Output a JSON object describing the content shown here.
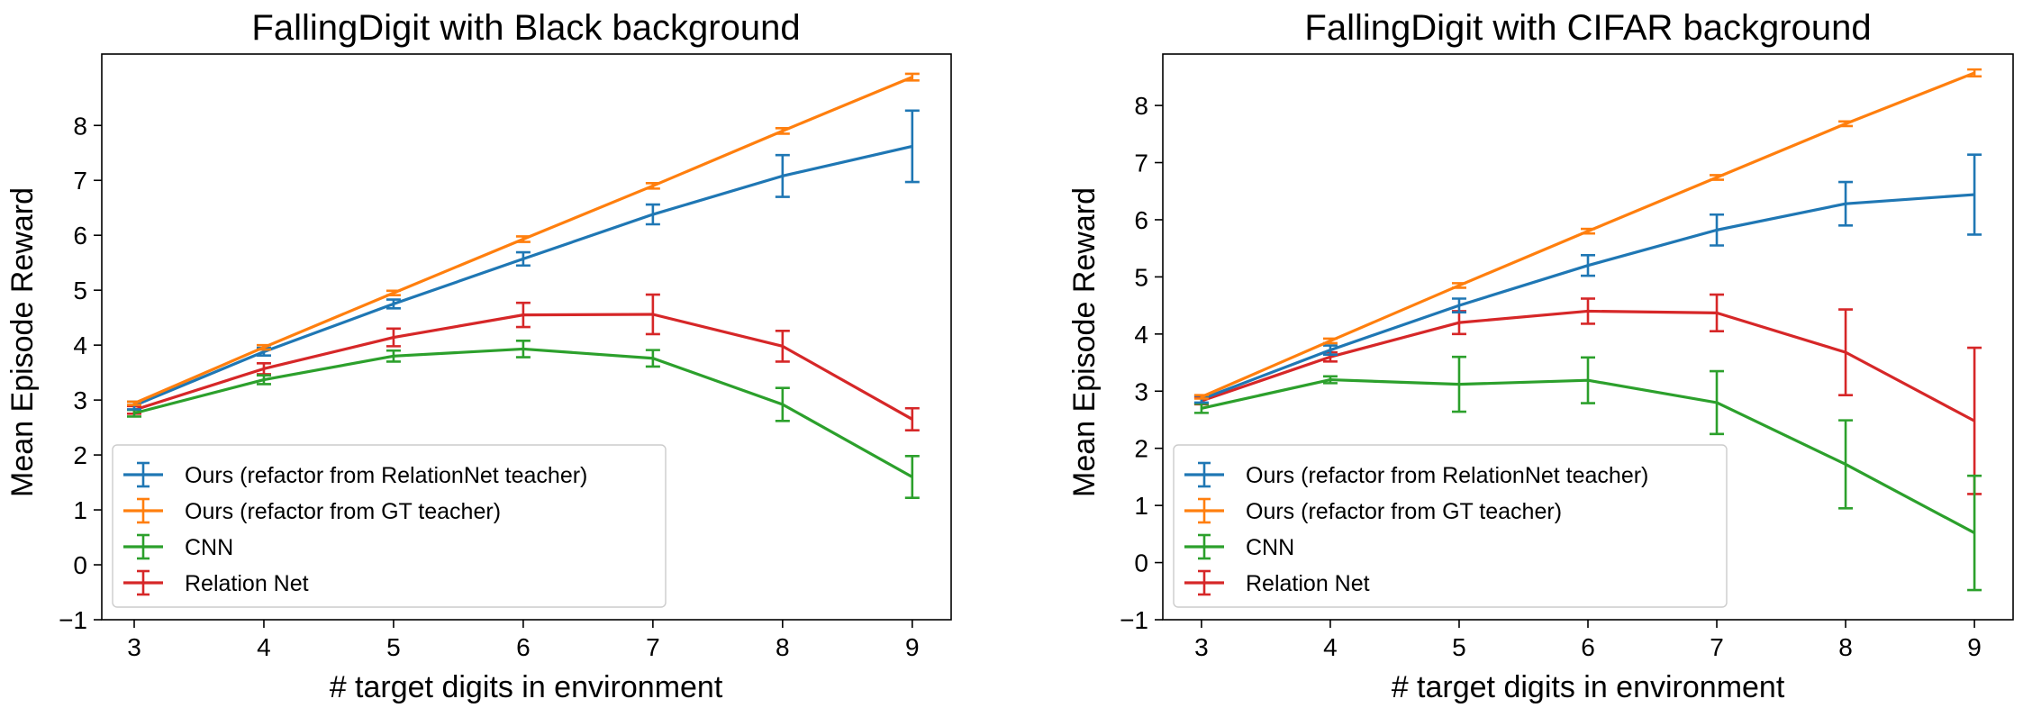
{
  "chart_data": [
    {
      "type": "line",
      "title": "FallingDigit with Black background",
      "xlabel": "# target digits in environment",
      "ylabel": "Mean Episode Reward",
      "xlim": [
        2.75,
        9.3
      ],
      "ylim": [
        -1,
        9.3
      ],
      "x": [
        3,
        4,
        5,
        6,
        7,
        8,
        9
      ],
      "xticks": [
        3,
        4,
        5,
        6,
        7,
        8,
        9
      ],
      "yticks": [
        -1,
        0,
        1,
        2,
        3,
        4,
        5,
        6,
        7,
        8
      ],
      "legend_position": "lower-left",
      "series": [
        {
          "name": "Ours (refactor from RelationNet teacher)",
          "color": "#1f77b4",
          "values": [
            2.9,
            3.88,
            4.75,
            5.57,
            6.38,
            7.08,
            7.62
          ],
          "errors": [
            0.07,
            0.07,
            0.08,
            0.12,
            0.18,
            0.38,
            0.65
          ]
        },
        {
          "name": "Ours (refactor from GT teacher)",
          "color": "#ff7f0e",
          "values": [
            2.94,
            3.96,
            4.95,
            5.93,
            6.9,
            7.9,
            8.88
          ],
          "errors": [
            0.03,
            0.04,
            0.04,
            0.05,
            0.05,
            0.05,
            0.06
          ]
        },
        {
          "name": "CNN",
          "color": "#2ca02c",
          "values": [
            2.76,
            3.37,
            3.8,
            3.93,
            3.76,
            2.92,
            1.6
          ],
          "errors": [
            0.06,
            0.08,
            0.1,
            0.15,
            0.15,
            0.3,
            0.38
          ]
        },
        {
          "name": "Relation Net",
          "color": "#d62728",
          "values": [
            2.82,
            3.57,
            4.14,
            4.55,
            4.56,
            3.98,
            2.65
          ],
          "errors": [
            0.07,
            0.1,
            0.16,
            0.22,
            0.36,
            0.28,
            0.2
          ]
        }
      ]
    },
    {
      "type": "line",
      "title": "FallingDigit with CIFAR background",
      "xlabel": "# target digits in environment",
      "ylabel": "Mean Episode Reward",
      "xlim": [
        2.7,
        9.3
      ],
      "ylim": [
        -1,
        8.9
      ],
      "x": [
        3,
        4,
        5,
        6,
        7,
        8,
        9
      ],
      "xticks": [
        3,
        4,
        5,
        6,
        7,
        8,
        9
      ],
      "yticks": [
        -1,
        0,
        1,
        2,
        3,
        4,
        5,
        6,
        7,
        8
      ],
      "legend_position": "lower-left",
      "series": [
        {
          "name": "Ours (refactor from RelationNet teacher)",
          "color": "#1f77b4",
          "values": [
            2.86,
            3.72,
            4.5,
            5.2,
            5.82,
            6.28,
            6.44
          ],
          "errors": [
            0.06,
            0.08,
            0.12,
            0.18,
            0.27,
            0.38,
            0.7
          ]
        },
        {
          "name": "Ours (refactor from GT teacher)",
          "color": "#ff7f0e",
          "values": [
            2.9,
            3.88,
            4.85,
            5.8,
            6.74,
            7.68,
            8.57
          ],
          "errors": [
            0.03,
            0.04,
            0.04,
            0.04,
            0.04,
            0.04,
            0.06
          ]
        },
        {
          "name": "CNN",
          "color": "#2ca02c",
          "values": [
            2.7,
            3.2,
            3.12,
            3.19,
            2.8,
            1.72,
            0.52
          ],
          "errors": [
            0.08,
            0.06,
            0.48,
            0.4,
            0.55,
            0.77,
            1.0
          ]
        },
        {
          "name": "Relation Net",
          "color": "#d62728",
          "values": [
            2.83,
            3.6,
            4.2,
            4.4,
            4.37,
            3.68,
            2.48
          ],
          "errors": [
            0.06,
            0.08,
            0.2,
            0.22,
            0.32,
            0.75,
            1.28
          ]
        }
      ]
    }
  ]
}
